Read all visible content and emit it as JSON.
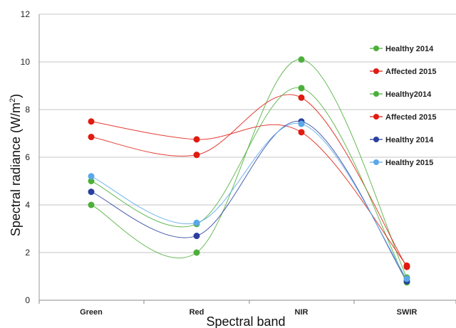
{
  "chart_data": {
    "type": "line",
    "xlabel": "Spectral band",
    "ylabel_main": "Spectral radiance (W/m",
    "ylabel_sup": "2",
    "ylabel_tail": ")",
    "ylim": [
      0,
      12
    ],
    "yticks": [
      "0",
      "2",
      "4",
      "6",
      "8",
      "10",
      "12"
    ],
    "categories": [
      "Green",
      "Red",
      "NIR",
      "SWIR"
    ],
    "grid": true,
    "legend_position": "right",
    "series": [
      {
        "name": "Healthy 2014",
        "color": "#4caf3a",
        "values": [
          4.0,
          2.0,
          10.1,
          0.95
        ]
      },
      {
        "name": "Affected 2015",
        "color": "#e01b10",
        "values": [
          6.85,
          6.1,
          8.5,
          1.4
        ]
      },
      {
        "name": "Healthy2014",
        "color": "#4caf3a",
        "values": [
          5.0,
          3.2,
          8.9,
          0.75
        ]
      },
      {
        "name": "Affected 2015",
        "color": "#e01b10",
        "values": [
          7.5,
          6.75,
          7.05,
          1.45
        ]
      },
      {
        "name": "Healthy 2014",
        "color": "#2a3f9e",
        "values": [
          4.55,
          2.7,
          7.5,
          0.8
        ]
      },
      {
        "name": "Healthy 2015",
        "color": "#5aa8e8",
        "values": [
          5.2,
          3.25,
          7.4,
          0.9
        ]
      }
    ]
  }
}
